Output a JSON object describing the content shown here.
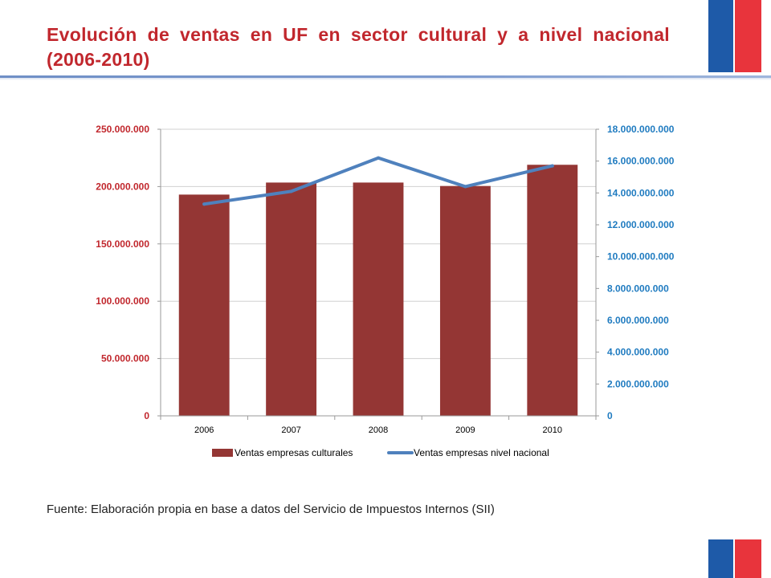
{
  "title": "Evolución de ventas en UF en sector cultural y a nivel nacional (2006-2010)",
  "source_note": "Fuente: Elaboración propia en base a datos del Servicio de Impuestos Internos (SII)",
  "colors": {
    "title": "#c1272d",
    "bar": "#943634",
    "line": "#4f81bd",
    "left_axis_labels": "#c1272d",
    "right_axis_labels": "#1f7bc0",
    "flag_blue": "#1e5aa8",
    "flag_red": "#e8343c"
  },
  "chart_data": {
    "type": "bar",
    "categories": [
      "2006",
      "2007",
      "2008",
      "2009",
      "2010"
    ],
    "series": [
      {
        "name": "Ventas empresas culturales",
        "type": "bar",
        "axis": "left",
        "values": [
          193000000,
          203500000,
          203500000,
          200500000,
          219000000
        ]
      },
      {
        "name": "Ventas empresas nivel nacional",
        "type": "line",
        "axis": "right",
        "values": [
          13300000000,
          14100000000,
          16200000000,
          14400000000,
          15700000000
        ]
      }
    ],
    "y_left": {
      "ylim": [
        0,
        250000000
      ],
      "ticks": [
        0,
        50000000,
        100000000,
        150000000,
        200000000,
        250000000
      ],
      "tick_labels": [
        "0",
        "50.000.000",
        "100.000.000",
        "150.000.000",
        "200.000.000",
        "250.000.000"
      ]
    },
    "y_right": {
      "ylim": [
        0,
        18000000000
      ],
      "ticks": [
        0,
        2000000000,
        4000000000,
        6000000000,
        8000000000,
        10000000000,
        12000000000,
        14000000000,
        16000000000,
        18000000000
      ],
      "tick_labels": [
        "0",
        "2.000.000.000",
        "4.000.000.000",
        "6.000.000.000",
        "8.000.000.000",
        "10.000.000.000",
        "12.000.000.000",
        "14.000.000.000",
        "16.000.000.000",
        "18.000.000.000"
      ]
    },
    "grid": "horizontal",
    "legend": "bottom"
  }
}
